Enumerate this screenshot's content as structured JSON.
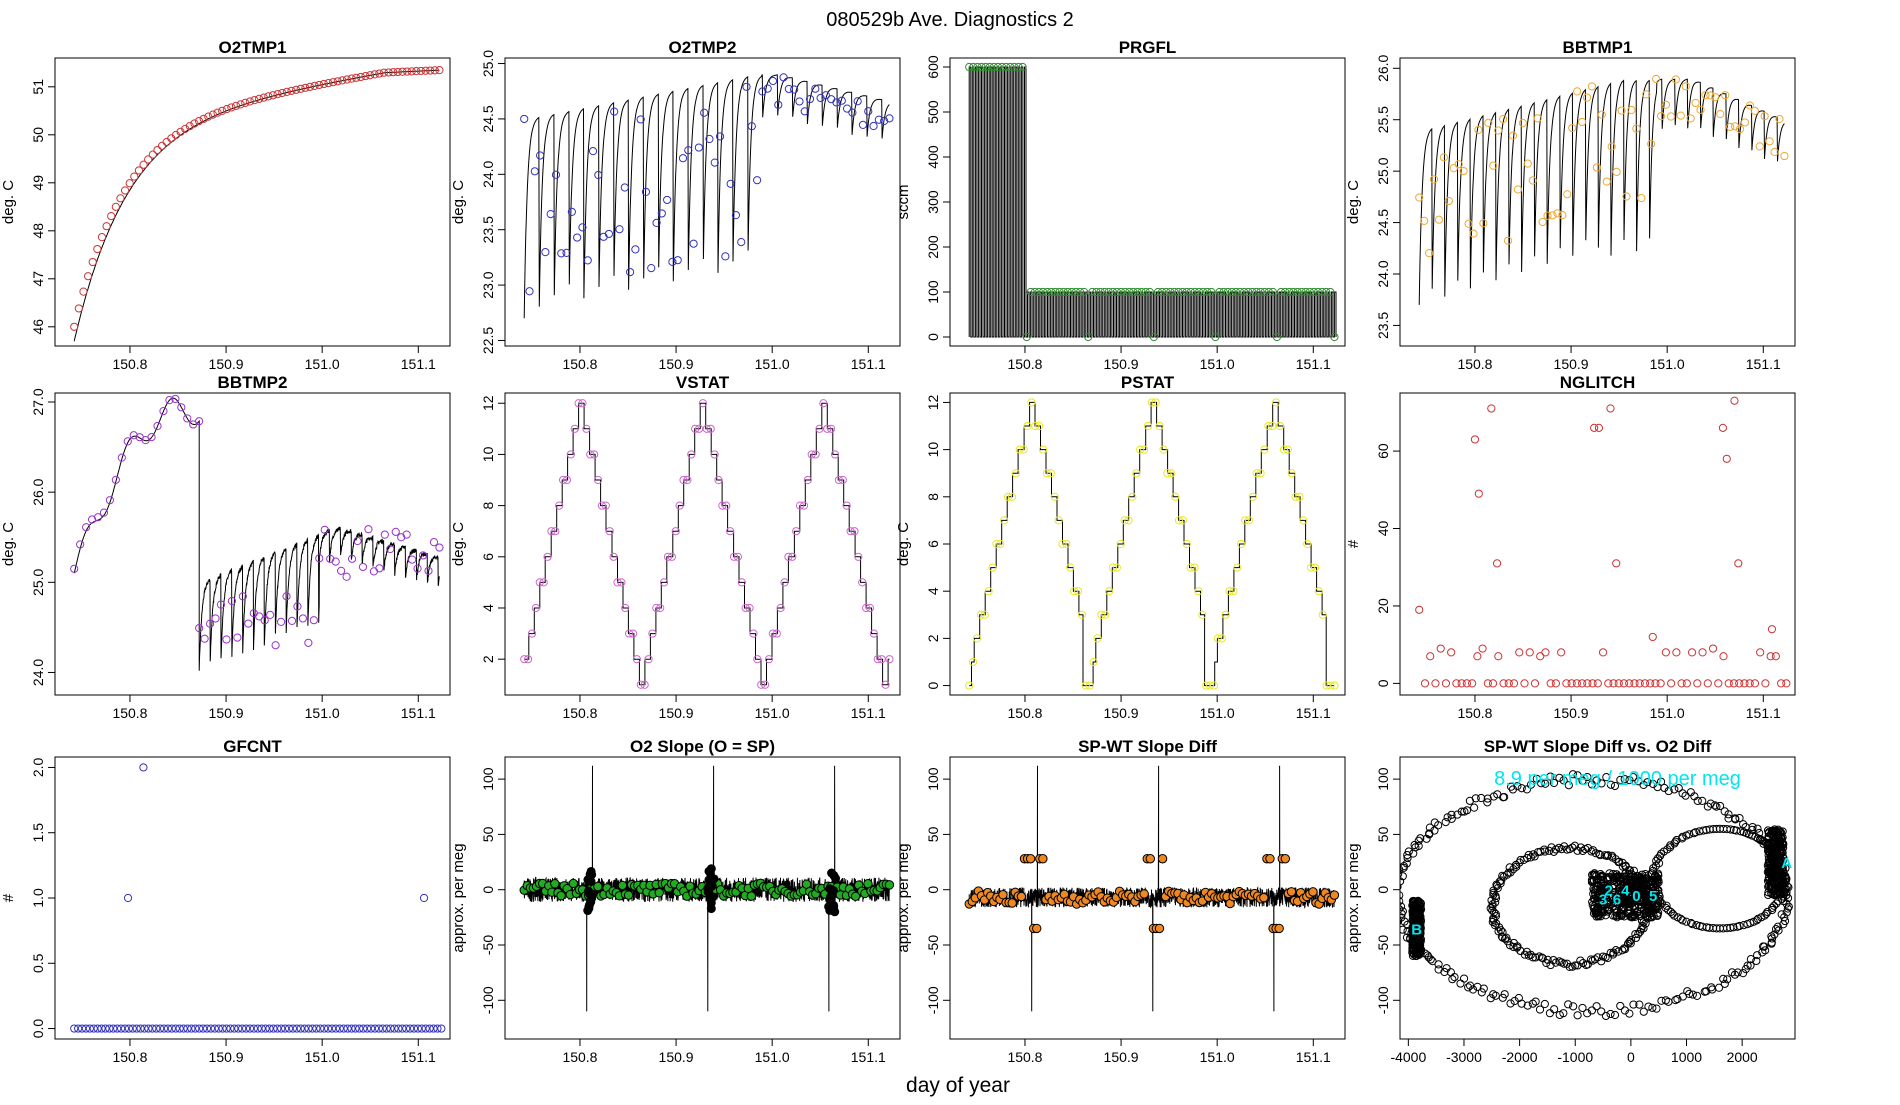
{
  "figure": {
    "title": "080529b   Ave. Diagnostics 2",
    "xlabel": "day of year",
    "colors": {
      "axis": "#000000",
      "line": "#000000",
      "annot": "#00e5ee"
    }
  },
  "chart_data": [
    {
      "id": "o2tmp1",
      "type": "line",
      "title": "O2TMP1",
      "ylabel": "deg. C",
      "xlim": [
        150.722,
        151.133
      ],
      "ylim": [
        45.6,
        51.6
      ],
      "xticks": [
        150.8,
        150.9,
        151.0,
        151.1
      ],
      "xtick_labels": [
        "150.8",
        "150.9",
        "151.0",
        "151.1"
      ],
      "yticks": [
        46,
        47,
        48,
        49,
        50,
        51
      ],
      "ytick_labels": [
        "46",
        "47",
        "48",
        "49",
        "50",
        "51"
      ],
      "marker_color": "#cd3333",
      "shape": "o2tmp1"
    },
    {
      "id": "o2tmp2",
      "type": "line",
      "title": "O2TMP2",
      "ylabel": "deg. C",
      "xlim": [
        150.722,
        151.133
      ],
      "ylim": [
        22.45,
        25.05
      ],
      "xticks": [
        150.8,
        150.9,
        151.0,
        151.1
      ],
      "xtick_labels": [
        "150.8",
        "150.9",
        "151.0",
        "151.1"
      ],
      "yticks": [
        22.5,
        23.0,
        23.5,
        24.0,
        24.5,
        25.0
      ],
      "ytick_labels": [
        "22.5",
        "23.0",
        "23.5",
        "24.0",
        "24.5",
        "25.0"
      ],
      "marker_color": "#3333bb",
      "shape": "o2tmp2"
    },
    {
      "id": "prgfl",
      "type": "line",
      "title": "PRGFL",
      "ylabel": "sccm",
      "xlim": [
        150.722,
        151.133
      ],
      "ylim": [
        -20,
        620
      ],
      "xticks": [
        150.8,
        150.9,
        151.0,
        151.1
      ],
      "xtick_labels": [
        "150.8",
        "150.9",
        "151.0",
        "151.1"
      ],
      "yticks": [
        0,
        100,
        200,
        300,
        400,
        500,
        600
      ],
      "ytick_labels": [
        "0",
        "100",
        "200",
        "300",
        "400",
        "500",
        "600"
      ],
      "marker_color": "#2e8b2e",
      "shape": "prgfl"
    },
    {
      "id": "bbtmp1",
      "type": "line",
      "title": "BBTMP1",
      "ylabel": "deg. C",
      "xlim": [
        150.722,
        151.133
      ],
      "ylim": [
        23.3,
        26.1
      ],
      "xticks": [
        150.8,
        150.9,
        151.0,
        151.1
      ],
      "xtick_labels": [
        "150.8",
        "150.9",
        "151.0",
        "151.1"
      ],
      "yticks": [
        23.5,
        24.0,
        24.5,
        25.0,
        25.5,
        26.0
      ],
      "ytick_labels": [
        "23.5",
        "24.0",
        "24.5",
        "25.0",
        "25.5",
        "26.0"
      ],
      "marker_color": "#f0a830",
      "shape": "bbtmp1"
    },
    {
      "id": "bbtmp2",
      "type": "line",
      "title": "BBTMP2",
      "ylabel": "deg. C",
      "xlim": [
        150.722,
        151.133
      ],
      "ylim": [
        23.75,
        27.1
      ],
      "xticks": [
        150.8,
        150.9,
        151.0,
        151.1
      ],
      "xtick_labels": [
        "150.8",
        "150.9",
        "151.0",
        "151.1"
      ],
      "yticks": [
        24.0,
        25.0,
        26.0,
        27.0
      ],
      "ytick_labels": [
        "24.0",
        "25.0",
        "26.0",
        "27.0"
      ],
      "marker_color": "#9932cc",
      "shape": "bbtmp2"
    },
    {
      "id": "vstat",
      "type": "line",
      "title": "VSTAT",
      "ylabel": "deg. C",
      "xlim": [
        150.722,
        151.133
      ],
      "ylim": [
        0.6,
        12.4
      ],
      "xticks": [
        150.8,
        150.9,
        151.0,
        151.1
      ],
      "xtick_labels": [
        "150.8",
        "150.9",
        "151.0",
        "151.1"
      ],
      "yticks": [
        2,
        4,
        6,
        8,
        10,
        12
      ],
      "ytick_labels": [
        "2",
        "4",
        "6",
        "8",
        "10",
        "12"
      ],
      "marker_color": "#cc66cc",
      "shape": "vstat"
    },
    {
      "id": "pstat",
      "type": "line",
      "title": "PSTAT",
      "ylabel": "deg. C",
      "xlim": [
        150.722,
        151.133
      ],
      "ylim": [
        -0.4,
        12.4
      ],
      "xticks": [
        150.8,
        150.9,
        151.0,
        151.1
      ],
      "xtick_labels": [
        "150.8",
        "150.9",
        "151.0",
        "151.1"
      ],
      "yticks": [
        0,
        2,
        4,
        6,
        8,
        10,
        12
      ],
      "ytick_labels": [
        "0",
        "2",
        "4",
        "6",
        "8",
        "10",
        "12"
      ],
      "marker_color": "#e8e820",
      "shape": "pstat"
    },
    {
      "id": "nglitch",
      "type": "scatter",
      "title": "NGLITCH",
      "ylabel": "#",
      "xlim": [
        150.722,
        151.133
      ],
      "ylim": [
        -3,
        75
      ],
      "xticks": [
        150.8,
        150.9,
        151.0,
        151.1
      ],
      "xtick_labels": [
        "150.8",
        "150.9",
        "151.0",
        "151.1"
      ],
      "yticks": [
        0,
        20,
        40,
        60
      ],
      "ytick_labels": [
        "0",
        "20",
        "40",
        "60"
      ],
      "marker_color": "#cd3333",
      "shape": "nglitch"
    },
    {
      "id": "gfcnt",
      "type": "scatter",
      "title": "GFCNT",
      "ylabel": "#",
      "xlim": [
        150.722,
        151.133
      ],
      "ylim": [
        -0.08,
        2.08
      ],
      "xticks": [
        150.8,
        150.9,
        151.0,
        151.1
      ],
      "xtick_labels": [
        "150.8",
        "150.9",
        "151.0",
        "151.1"
      ],
      "yticks": [
        0.0,
        0.5,
        1.0,
        1.5,
        2.0
      ],
      "ytick_labels": [
        "0.0",
        "0.5",
        "1.0",
        "1.5",
        "2.0"
      ],
      "marker_color": "#3333bb",
      "shape": "gfcnt"
    },
    {
      "id": "o2slope",
      "type": "line",
      "title": "O2 Slope (O = SP)",
      "ylabel": "approx. per meg",
      "xlim": [
        150.722,
        151.133
      ],
      "ylim": [
        -135,
        120
      ],
      "xticks": [
        150.8,
        150.9,
        151.0,
        151.1
      ],
      "xtick_labels": [
        "150.8",
        "150.9",
        "151.0",
        "151.1"
      ],
      "yticks": [
        -100,
        -50,
        0,
        50,
        100
      ],
      "ytick_labels": [
        "-100",
        "-50",
        "0",
        "50",
        "100"
      ],
      "marker_color": "#22aa22",
      "shape": "o2slope"
    },
    {
      "id": "spwt",
      "type": "line",
      "title": "SP-WT Slope Diff",
      "ylabel": "approx. per meg",
      "xlim": [
        150.722,
        151.133
      ],
      "ylim": [
        -135,
        120
      ],
      "xticks": [
        150.8,
        150.9,
        151.0,
        151.1
      ],
      "xtick_labels": [
        "150.8",
        "150.9",
        "151.0",
        "151.1"
      ],
      "yticks": [
        -100,
        -50,
        0,
        50,
        100
      ],
      "ytick_labels": [
        "-100",
        "-50",
        "0",
        "50",
        "100"
      ],
      "marker_color": "#ee8822",
      "shape": "spwt"
    },
    {
      "id": "spwtvso2",
      "type": "scatter",
      "title": "SP-WT Slope Diff vs. O2 Diff",
      "ylabel": "approx. per meg",
      "xlim": [
        -4150,
        2950
      ],
      "ylim": [
        -135,
        120
      ],
      "xticks": [
        -4000,
        -3000,
        -2000,
        -1000,
        0,
        1000,
        2000
      ],
      "xtick_labels": [
        "-4000",
        "-3000",
        "-2000",
        "-1000",
        "0",
        "1000",
        "2000"
      ],
      "yticks": [
        -100,
        -50,
        0,
        50,
        100
      ],
      "ytick_labels": [
        "-100",
        "-50",
        "0",
        "50",
        "100"
      ],
      "marker_color": "#000000",
      "shape": "scatter",
      "annotation": "8.9 per meg / 1000 per meg",
      "labels": [
        {
          "text": "A",
          "x": 2800,
          "y": 25
        },
        {
          "text": "B",
          "x": -3850,
          "y": -35
        },
        {
          "text": "2",
          "x": -400,
          "y": 0
        },
        {
          "text": "4",
          "x": -100,
          "y": 0
        },
        {
          "text": "3",
          "x": -500,
          "y": -8
        },
        {
          "text": "6",
          "x": -250,
          "y": -8
        },
        {
          "text": "5",
          "x": 400,
          "y": -5
        },
        {
          "text": "0",
          "x": 100,
          "y": -5
        }
      ]
    }
  ]
}
